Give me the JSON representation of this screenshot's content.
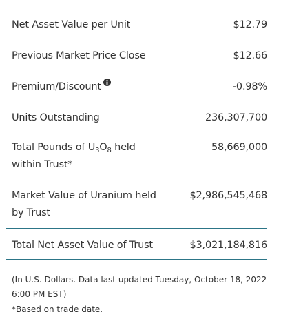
{
  "table": {
    "rows": [
      {
        "label": "Net Asset Value per Unit",
        "value": "$12.79"
      },
      {
        "label": "Previous Market Price Close",
        "value": "$12.66"
      },
      {
        "label": "Premium/Discount",
        "value": "-0.98%",
        "info": true
      },
      {
        "label": "Units Outstanding",
        "value": "236,307,700"
      },
      {
        "label_parts": [
          {
            "text": "Total Pounds of U"
          },
          {
            "text": "3",
            "sub": true
          },
          {
            "text": "O"
          },
          {
            "text": "8",
            "sub": true
          },
          {
            "text": " held within Trust*"
          }
        ],
        "value": "58,669,000"
      },
      {
        "label": "Market Value of Uranium held by Trust",
        "value": "$2,986,545,468"
      },
      {
        "label": "Total Net Asset Value of Trust",
        "value": "$3,021,184,816"
      }
    ]
  },
  "notes": [
    "(In U.S. Dollars. Data last updated Tuesday, October 18, 2022 6:00 PM EST)",
    "*Based on trade date."
  ]
}
